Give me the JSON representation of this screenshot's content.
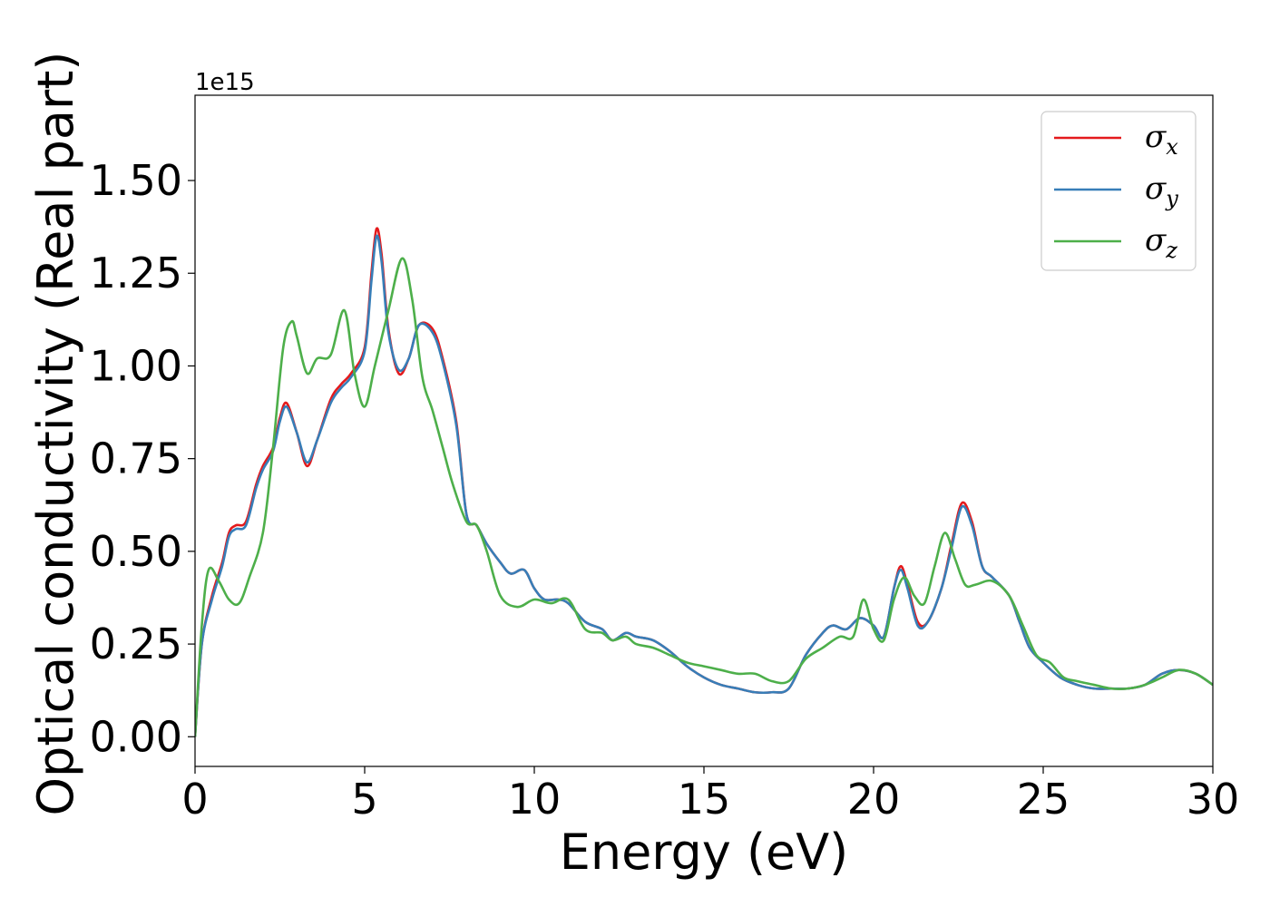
{
  "chart_data": {
    "type": "line",
    "xlabel": "Energy (eV)",
    "ylabel": "Optical conductivity (Real part)",
    "y_offset_label": "1e15",
    "xlim": [
      0,
      30
    ],
    "ylim": [
      -0.08,
      1.73
    ],
    "x_ticks": [
      0,
      5,
      10,
      15,
      20,
      25,
      30
    ],
    "x_tick_labels": [
      "0",
      "5",
      "10",
      "15",
      "20",
      "25",
      "30"
    ],
    "y_ticks": [
      0,
      0.25,
      0.5,
      0.75,
      1.0,
      1.25,
      1.5
    ],
    "y_tick_labels": [
      "0.00",
      "0.25",
      "0.50",
      "0.75",
      "1.00",
      "1.25",
      "1.50"
    ],
    "grid": false,
    "legend_position": "top-right",
    "series": [
      {
        "name": "σx",
        "symbol": "σ",
        "subscript": "x",
        "color": "#e41a1c",
        "points": [
          [
            0,
            0
          ],
          [
            0.2,
            0.25
          ],
          [
            0.5,
            0.38
          ],
          [
            0.8,
            0.47
          ],
          [
            1.0,
            0.55
          ],
          [
            1.2,
            0.57
          ],
          [
            1.5,
            0.58
          ],
          [
            1.8,
            0.68
          ],
          [
            2.0,
            0.73
          ],
          [
            2.3,
            0.78
          ],
          [
            2.5,
            0.86
          ],
          [
            2.7,
            0.9
          ],
          [
            3.0,
            0.82
          ],
          [
            3.3,
            0.73
          ],
          [
            3.6,
            0.8
          ],
          [
            4.0,
            0.91
          ],
          [
            4.3,
            0.95
          ],
          [
            4.6,
            0.98
          ],
          [
            5.0,
            1.05
          ],
          [
            5.2,
            1.25
          ],
          [
            5.35,
            1.37
          ],
          [
            5.5,
            1.3
          ],
          [
            5.7,
            1.1
          ],
          [
            6.0,
            0.98
          ],
          [
            6.3,
            1.02
          ],
          [
            6.6,
            1.11
          ],
          [
            7.0,
            1.1
          ],
          [
            7.3,
            1.02
          ],
          [
            7.7,
            0.85
          ],
          [
            8.0,
            0.6
          ],
          [
            8.3,
            0.57
          ],
          [
            8.6,
            0.52
          ],
          [
            9.0,
            0.47
          ],
          [
            9.3,
            0.44
          ],
          [
            9.7,
            0.45
          ],
          [
            10.0,
            0.4
          ],
          [
            10.3,
            0.37
          ],
          [
            10.7,
            0.37
          ],
          [
            11.0,
            0.36
          ],
          [
            11.5,
            0.31
          ],
          [
            12.0,
            0.29
          ],
          [
            12.3,
            0.26
          ],
          [
            12.7,
            0.28
          ],
          [
            13.0,
            0.27
          ],
          [
            13.5,
            0.26
          ],
          [
            14.0,
            0.23
          ],
          [
            14.5,
            0.19
          ],
          [
            15.0,
            0.16
          ],
          [
            15.5,
            0.14
          ],
          [
            16.0,
            0.13
          ],
          [
            16.5,
            0.12
          ],
          [
            17.0,
            0.12
          ],
          [
            17.5,
            0.13
          ],
          [
            18.0,
            0.22
          ],
          [
            18.5,
            0.28
          ],
          [
            18.8,
            0.3
          ],
          [
            19.2,
            0.29
          ],
          [
            19.6,
            0.32
          ],
          [
            20.0,
            0.3
          ],
          [
            20.3,
            0.27
          ],
          [
            20.6,
            0.4
          ],
          [
            20.8,
            0.46
          ],
          [
            21.0,
            0.41
          ],
          [
            21.3,
            0.31
          ],
          [
            21.6,
            0.31
          ],
          [
            22.0,
            0.4
          ],
          [
            22.3,
            0.52
          ],
          [
            22.6,
            0.63
          ],
          [
            22.9,
            0.58
          ],
          [
            23.2,
            0.46
          ],
          [
            23.5,
            0.43
          ],
          [
            24.0,
            0.38
          ],
          [
            24.3,
            0.31
          ],
          [
            24.6,
            0.24
          ],
          [
            25.0,
            0.2
          ],
          [
            25.5,
            0.16
          ],
          [
            26.0,
            0.14
          ],
          [
            26.5,
            0.13
          ],
          [
            27.0,
            0.13
          ],
          [
            27.5,
            0.13
          ],
          [
            28.0,
            0.14
          ],
          [
            28.5,
            0.17
          ],
          [
            29.0,
            0.18
          ],
          [
            29.5,
            0.17
          ],
          [
            30.0,
            0.14
          ]
        ]
      },
      {
        "name": "σy",
        "symbol": "σ",
        "subscript": "y",
        "color": "#377eb8",
        "points": [
          [
            0,
            0
          ],
          [
            0.2,
            0.25
          ],
          [
            0.5,
            0.37
          ],
          [
            0.8,
            0.46
          ],
          [
            1.0,
            0.54
          ],
          [
            1.2,
            0.56
          ],
          [
            1.5,
            0.57
          ],
          [
            1.8,
            0.67
          ],
          [
            2.0,
            0.72
          ],
          [
            2.3,
            0.77
          ],
          [
            2.5,
            0.85
          ],
          [
            2.7,
            0.89
          ],
          [
            3.0,
            0.82
          ],
          [
            3.3,
            0.74
          ],
          [
            3.6,
            0.8
          ],
          [
            4.0,
            0.9
          ],
          [
            4.3,
            0.94
          ],
          [
            4.6,
            0.97
          ],
          [
            5.0,
            1.04
          ],
          [
            5.2,
            1.23
          ],
          [
            5.35,
            1.35
          ],
          [
            5.5,
            1.28
          ],
          [
            5.7,
            1.09
          ],
          [
            6.0,
            0.99
          ],
          [
            6.3,
            1.02
          ],
          [
            6.6,
            1.11
          ],
          [
            7.0,
            1.09
          ],
          [
            7.3,
            1.01
          ],
          [
            7.7,
            0.84
          ],
          [
            8.0,
            0.6
          ],
          [
            8.3,
            0.57
          ],
          [
            8.6,
            0.52
          ],
          [
            9.0,
            0.47
          ],
          [
            9.3,
            0.44
          ],
          [
            9.7,
            0.45
          ],
          [
            10.0,
            0.4
          ],
          [
            10.3,
            0.37
          ],
          [
            10.7,
            0.37
          ],
          [
            11.0,
            0.36
          ],
          [
            11.5,
            0.31
          ],
          [
            12.0,
            0.29
          ],
          [
            12.3,
            0.26
          ],
          [
            12.7,
            0.28
          ],
          [
            13.0,
            0.27
          ],
          [
            13.5,
            0.26
          ],
          [
            14.0,
            0.23
          ],
          [
            14.5,
            0.19
          ],
          [
            15.0,
            0.16
          ],
          [
            15.5,
            0.14
          ],
          [
            16.0,
            0.13
          ],
          [
            16.5,
            0.12
          ],
          [
            17.0,
            0.12
          ],
          [
            17.5,
            0.13
          ],
          [
            18.0,
            0.22
          ],
          [
            18.5,
            0.28
          ],
          [
            18.8,
            0.3
          ],
          [
            19.2,
            0.29
          ],
          [
            19.6,
            0.32
          ],
          [
            20.0,
            0.3
          ],
          [
            20.3,
            0.27
          ],
          [
            20.6,
            0.4
          ],
          [
            20.8,
            0.45
          ],
          [
            21.0,
            0.4
          ],
          [
            21.3,
            0.3
          ],
          [
            21.6,
            0.31
          ],
          [
            22.0,
            0.4
          ],
          [
            22.3,
            0.51
          ],
          [
            22.6,
            0.62
          ],
          [
            22.9,
            0.57
          ],
          [
            23.2,
            0.46
          ],
          [
            23.5,
            0.43
          ],
          [
            24.0,
            0.38
          ],
          [
            24.3,
            0.31
          ],
          [
            24.6,
            0.24
          ],
          [
            25.0,
            0.2
          ],
          [
            25.5,
            0.16
          ],
          [
            26.0,
            0.14
          ],
          [
            26.5,
            0.13
          ],
          [
            27.0,
            0.13
          ],
          [
            27.5,
            0.13
          ],
          [
            28.0,
            0.14
          ],
          [
            28.5,
            0.17
          ],
          [
            29.0,
            0.18
          ],
          [
            29.5,
            0.17
          ],
          [
            30.0,
            0.14
          ]
        ]
      },
      {
        "name": "σz",
        "symbol": "σ",
        "subscript": "z",
        "color": "#4daf4a",
        "points": [
          [
            0,
            0
          ],
          [
            0.2,
            0.3
          ],
          [
            0.4,
            0.45
          ],
          [
            0.7,
            0.42
          ],
          [
            1.0,
            0.37
          ],
          [
            1.3,
            0.36
          ],
          [
            1.6,
            0.43
          ],
          [
            2.0,
            0.55
          ],
          [
            2.3,
            0.78
          ],
          [
            2.6,
            1.05
          ],
          [
            2.85,
            1.12
          ],
          [
            3.0,
            1.08
          ],
          [
            3.3,
            0.98
          ],
          [
            3.6,
            1.02
          ],
          [
            4.0,
            1.03
          ],
          [
            4.4,
            1.15
          ],
          [
            4.7,
            0.98
          ],
          [
            5.0,
            0.89
          ],
          [
            5.3,
            1.0
          ],
          [
            5.7,
            1.15
          ],
          [
            6.1,
            1.29
          ],
          [
            6.4,
            1.18
          ],
          [
            6.7,
            0.97
          ],
          [
            7.0,
            0.88
          ],
          [
            7.3,
            0.78
          ],
          [
            7.6,
            0.68
          ],
          [
            8.0,
            0.58
          ],
          [
            8.3,
            0.57
          ],
          [
            8.6,
            0.5
          ],
          [
            9.0,
            0.38
          ],
          [
            9.5,
            0.35
          ],
          [
            10.0,
            0.37
          ],
          [
            10.5,
            0.36
          ],
          [
            11.0,
            0.37
          ],
          [
            11.5,
            0.29
          ],
          [
            12.0,
            0.28
          ],
          [
            12.3,
            0.26
          ],
          [
            12.7,
            0.27
          ],
          [
            13.0,
            0.25
          ],
          [
            13.5,
            0.24
          ],
          [
            14.0,
            0.22
          ],
          [
            14.5,
            0.2
          ],
          [
            15.0,
            0.19
          ],
          [
            15.5,
            0.18
          ],
          [
            16.0,
            0.17
          ],
          [
            16.5,
            0.17
          ],
          [
            17.0,
            0.15
          ],
          [
            17.5,
            0.15
          ],
          [
            18.0,
            0.21
          ],
          [
            18.5,
            0.24
          ],
          [
            19.0,
            0.27
          ],
          [
            19.4,
            0.27
          ],
          [
            19.7,
            0.37
          ],
          [
            20.0,
            0.29
          ],
          [
            20.3,
            0.26
          ],
          [
            20.6,
            0.37
          ],
          [
            20.9,
            0.43
          ],
          [
            21.2,
            0.38
          ],
          [
            21.5,
            0.36
          ],
          [
            21.8,
            0.46
          ],
          [
            22.1,
            0.55
          ],
          [
            22.4,
            0.48
          ],
          [
            22.7,
            0.41
          ],
          [
            23.0,
            0.41
          ],
          [
            23.5,
            0.42
          ],
          [
            24.0,
            0.38
          ],
          [
            24.4,
            0.3
          ],
          [
            24.8,
            0.22
          ],
          [
            25.2,
            0.2
          ],
          [
            25.6,
            0.16
          ],
          [
            26.0,
            0.15
          ],
          [
            26.5,
            0.14
          ],
          [
            27.0,
            0.13
          ],
          [
            27.5,
            0.13
          ],
          [
            28.0,
            0.14
          ],
          [
            28.5,
            0.16
          ],
          [
            29.0,
            0.18
          ],
          [
            29.5,
            0.17
          ],
          [
            30.0,
            0.14
          ]
        ]
      }
    ]
  }
}
